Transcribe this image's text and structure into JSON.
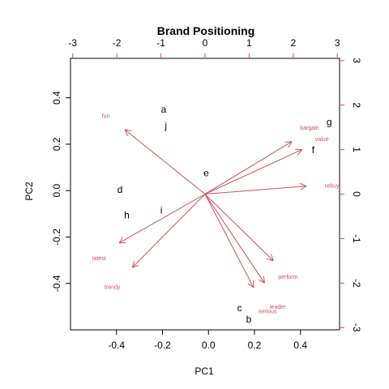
{
  "chart_data": {
    "type": "scatter",
    "title": "Brand Positioning",
    "xlabel": "PC1",
    "ylabel": "PC2",
    "xlim": [
      -0.6,
      0.57
    ],
    "ylim": [
      -0.6,
      0.57
    ],
    "xticks": [
      "-0.4",
      "-0.2",
      "0.0",
      "0.2",
      "0.4"
    ],
    "xtick_values": [
      -0.4,
      -0.2,
      0.0,
      0.2,
      0.4
    ],
    "yticks": [
      "-0.4",
      "-0.2",
      "0.0",
      "0.2",
      "0.4"
    ],
    "ytick_values": [
      -0.4,
      -0.2,
      0.0,
      0.2,
      0.4
    ],
    "top_axis": {
      "lim": [
        -3.05,
        3.05
      ],
      "ticks": [
        "-3",
        "-2",
        "-1",
        "0",
        "1",
        "2",
        "3"
      ],
      "tick_values": [
        -3,
        -2,
        -1,
        0,
        1,
        2,
        3
      ]
    },
    "right_axis": {
      "lim": [
        -3.05,
        3.05
      ],
      "ticks": [
        "-3",
        "-2",
        "-1",
        "0",
        "1",
        "2",
        "3"
      ],
      "tick_values": [
        -3,
        -2,
        -1,
        0,
        1,
        2,
        3
      ]
    },
    "observations": [
      {
        "label": "a",
        "x": -0.195,
        "y": 0.35
      },
      {
        "label": "b",
        "x": 0.175,
        "y": -0.555
      },
      {
        "label": "c",
        "x": 0.135,
        "y": -0.505
      },
      {
        "label": "d",
        "x": -0.385,
        "y": 0.005
      },
      {
        "label": "e",
        "x": -0.01,
        "y": 0.075
      },
      {
        "label": "f",
        "x": 0.455,
        "y": 0.175
      },
      {
        "label": "g",
        "x": 0.525,
        "y": 0.295
      },
      {
        "label": "h",
        "x": -0.355,
        "y": -0.105
      },
      {
        "label": "i",
        "x": -0.205,
        "y": -0.085
      },
      {
        "label": "j",
        "x": -0.185,
        "y": 0.28
      }
    ],
    "variables": [
      {
        "label": "fun",
        "x": -1.82,
        "y": 1.45,
        "lx": -2.25,
        "ly": 1.77
      },
      {
        "label": "bargain",
        "x": 1.97,
        "y": 1.18,
        "lx": 2.37,
        "ly": 1.5
      },
      {
        "label": "value",
        "x": 2.2,
        "y": 1.0,
        "lx": 2.65,
        "ly": 1.25
      },
      {
        "label": "rebuy",
        "x": 2.3,
        "y": 0.18,
        "lx": 2.88,
        "ly": 0.2
      },
      {
        "label": "latest",
        "x": -1.95,
        "y": -1.1,
        "lx": -2.4,
        "ly": -1.43
      },
      {
        "label": "trendy",
        "x": -1.65,
        "y": -1.65,
        "lx": -2.1,
        "ly": -2.08
      },
      {
        "label": "perform",
        "x": 1.55,
        "y": -1.5,
        "lx": 1.88,
        "ly": -1.85
      },
      {
        "label": "leader",
        "x": 1.35,
        "y": -2.0,
        "lx": 1.65,
        "ly": -2.52
      },
      {
        "label": "serious",
        "x": 1.1,
        "y": -2.1,
        "lx": 1.42,
        "ly": -2.62
      }
    ],
    "colors": {
      "variables": "#c8505e",
      "observations": "#000000",
      "axes": "#000000",
      "secondary_axes": "#c8505e"
    }
  }
}
